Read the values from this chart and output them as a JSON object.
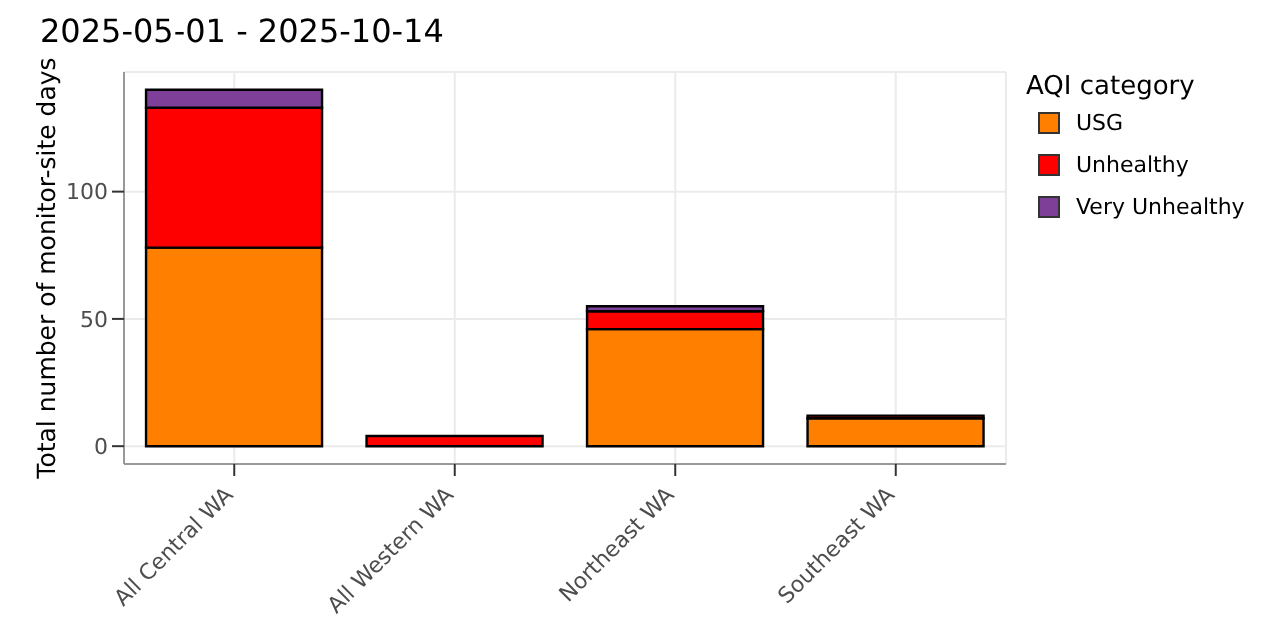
{
  "chart_data": {
    "type": "bar",
    "title": "2025-05-01 - 2025-10-14",
    "ylabel": "Total number of monitor-site days",
    "legend_title": "AQI category",
    "categories": [
      "All Central WA",
      "All Western WA",
      "Northeast WA",
      "Southeast WA"
    ],
    "series": [
      {
        "name": "USG",
        "color": "#ff7f00",
        "values": [
          78,
          null,
          46,
          11
        ]
      },
      {
        "name": "Unhealthy",
        "color": "#ff0000",
        "values": [
          55,
          4,
          7,
          1
        ]
      },
      {
        "name": "Very Unhealthy",
        "color": "#7e3f98",
        "values": [
          7,
          0,
          2,
          0
        ]
      }
    ],
    "stacked": true,
    "ylim": [
      -7,
      147
    ],
    "yticks": [
      0,
      50,
      100
    ],
    "grid": true,
    "legend": "right"
  }
}
